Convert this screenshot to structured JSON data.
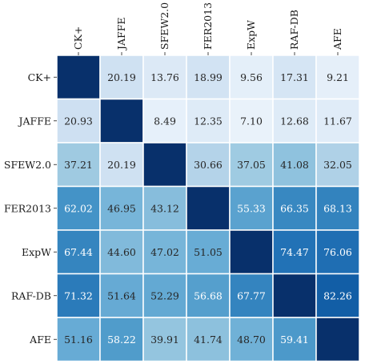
{
  "chart_data": {
    "type": "heatmap",
    "title": "",
    "xlabel": "",
    "ylabel": "",
    "col_labels": [
      "CK+",
      "JAFFE",
      "SFEW2.0",
      "FER2013",
      "ExpW",
      "RAF-DB",
      "AFE"
    ],
    "row_labels": [
      "CK+",
      "JAFFE",
      "SFEW2.0",
      "FER2013",
      "ExpW",
      "RAF-DB",
      "AFE"
    ],
    "values": [
      [
        null,
        20.19,
        13.76,
        18.99,
        9.56,
        17.31,
        9.21
      ],
      [
        20.93,
        null,
        8.49,
        12.35,
        7.1,
        12.68,
        11.67
      ],
      [
        37.21,
        20.19,
        null,
        30.66,
        37.05,
        41.08,
        32.05
      ],
      [
        62.02,
        46.95,
        43.12,
        null,
        55.33,
        66.35,
        68.13
      ],
      [
        67.44,
        44.6,
        47.02,
        51.05,
        null,
        74.47,
        76.06
      ],
      [
        71.32,
        51.64,
        52.29,
        56.68,
        67.77,
        null,
        82.26
      ],
      [
        51.16,
        58.22,
        39.91,
        41.74,
        48.7,
        59.41,
        null
      ]
    ],
    "value_range": [
      0,
      100
    ],
    "colormap": "Blues",
    "diagonal_color": "#08306b",
    "grid": false,
    "legend": "none"
  }
}
